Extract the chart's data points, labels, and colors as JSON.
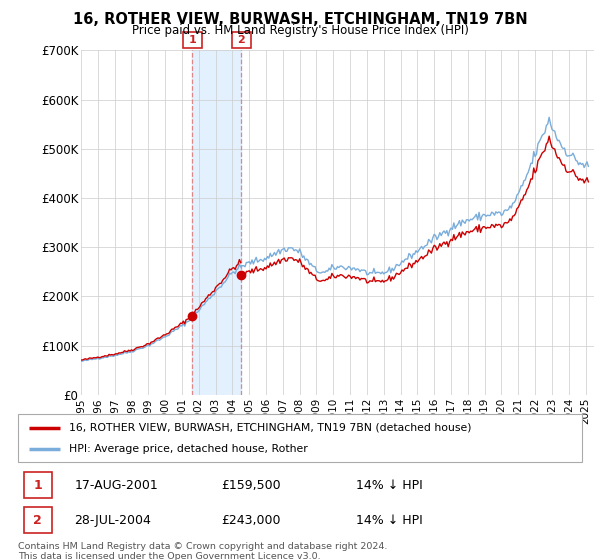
{
  "title": "16, ROTHER VIEW, BURWASH, ETCHINGHAM, TN19 7BN",
  "subtitle": "Price paid vs. HM Land Registry's House Price Index (HPI)",
  "ylim": [
    0,
    700000
  ],
  "yticks": [
    0,
    100000,
    200000,
    300000,
    400000,
    500000,
    600000,
    700000
  ],
  "ytick_labels": [
    "£0",
    "£100K",
    "£200K",
    "£300K",
    "£400K",
    "£500K",
    "£600K",
    "£700K"
  ],
  "sale1_date": 2001.625,
  "sale1_price": 159500,
  "sale1_label": "1",
  "sale2_date": 2004.538,
  "sale2_price": 243000,
  "sale2_label": "2",
  "legend_line1": "16, ROTHER VIEW, BURWASH, ETCHINGHAM, TN19 7BN (detached house)",
  "legend_line2": "HPI: Average price, detached house, Rother",
  "table_row1": [
    "1",
    "17-AUG-2001",
    "£159,500",
    "14% ↓ HPI"
  ],
  "table_row2": [
    "2",
    "28-JUL-2004",
    "£243,000",
    "14% ↓ HPI"
  ],
  "footer": "Contains HM Land Registry data © Crown copyright and database right 2024.\nThis data is licensed under the Open Government Licence v3.0.",
  "line_color_price": "#cc0000",
  "line_color_hpi": "#7aaddb",
  "shade_color": "#ddeeff",
  "dashed_color": "#dd8888",
  "background_color": "#ffffff",
  "xmin": 1995.0,
  "xmax": 2025.5
}
